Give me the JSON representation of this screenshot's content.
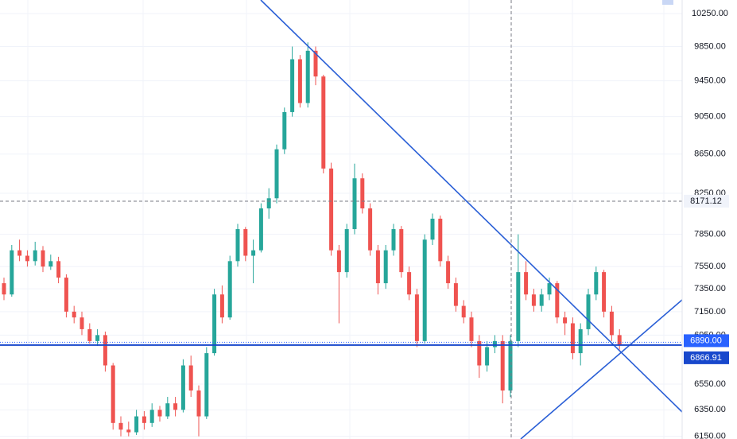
{
  "chart_data": {
    "type": "candlestick",
    "log_scale": true,
    "grid": true,
    "up_color": "#26a69a",
    "down_color": "#ef5350",
    "ylim": [
      6130,
      10420
    ],
    "yticks": [
      {
        "value": 10250,
        "label": "10250.00"
      },
      {
        "value": 9850,
        "label": "9850.00"
      },
      {
        "value": 9450,
        "label": "9450.00"
      },
      {
        "value": 9050,
        "label": "9050.00"
      },
      {
        "value": 8650,
        "label": "8650.00"
      },
      {
        "value": 8250,
        "label": "8250.00"
      },
      {
        "value": 7850,
        "label": "7850.00"
      },
      {
        "value": 7550,
        "label": "7550.00"
      },
      {
        "value": 7350,
        "label": "7350.00"
      },
      {
        "value": 7150,
        "label": "7150.00"
      },
      {
        "value": 6950,
        "label": "6950.00"
      },
      {
        "value": 6550,
        "label": "6550.00"
      },
      {
        "value": 6350,
        "label": "6350.00"
      },
      {
        "value": 6150,
        "label": "6150.00"
      }
    ],
    "price_lines": [
      {
        "value": 8171.12,
        "label": "8171.12",
        "color": "#787b86"
      },
      {
        "value": 6890,
        "label": "6890.00",
        "color": "#2962ff"
      },
      {
        "value": 6866.91,
        "label": "6866.91",
        "color": "#1848cc"
      }
    ],
    "ohlc": [
      [
        7400,
        7450,
        7250,
        7300
      ],
      [
        7300,
        7750,
        7280,
        7700
      ],
      [
        7700,
        7800,
        7600,
        7650
      ],
      [
        7650,
        7700,
        7550,
        7600
      ],
      [
        7600,
        7780,
        7560,
        7700
      ],
      [
        7700,
        7740,
        7500,
        7550
      ],
      [
        7550,
        7660,
        7520,
        7600
      ],
      [
        7600,
        7640,
        7400,
        7450
      ],
      [
        7450,
        7480,
        7100,
        7150
      ],
      [
        7150,
        7200,
        7050,
        7100
      ],
      [
        7100,
        7150,
        6950,
        7000
      ],
      [
        7000,
        7050,
        6880,
        6900
      ],
      [
        6900,
        7000,
        6860,
        6950
      ],
      [
        6950,
        6980,
        6650,
        6700
      ],
      [
        6700,
        6720,
        6200,
        6250
      ],
      [
        6250,
        6300,
        6150,
        6200
      ],
      [
        6200,
        6260,
        6150,
        6180
      ],
      [
        6180,
        6350,
        6160,
        6300
      ],
      [
        6300,
        6340,
        6200,
        6250
      ],
      [
        6250,
        6400,
        6220,
        6350
      ],
      [
        6350,
        6380,
        6260,
        6300
      ],
      [
        6300,
        6450,
        6280,
        6400
      ],
      [
        6400,
        6450,
        6300,
        6350
      ],
      [
        6350,
        6750,
        6330,
        6700
      ],
      [
        6700,
        6780,
        6450,
        6500
      ],
      [
        6500,
        6540,
        6150,
        6300
      ],
      [
        6300,
        6850,
        6280,
        6800
      ],
      [
        6800,
        7350,
        6780,
        7300
      ],
      [
        7300,
        7380,
        7050,
        7100
      ],
      [
        7100,
        7650,
        7080,
        7600
      ],
      [
        7600,
        7950,
        7550,
        7900
      ],
      [
        7900,
        7920,
        7600,
        7650
      ],
      [
        7650,
        7800,
        7400,
        7700
      ],
      [
        7700,
        8150,
        7680,
        8100
      ],
      [
        8100,
        8300,
        8000,
        8200
      ],
      [
        8200,
        8750,
        8150,
        8700
      ],
      [
        8700,
        9150,
        8650,
        9100
      ],
      [
        9100,
        9850,
        9050,
        9700
      ],
      [
        9700,
        9750,
        9150,
        9200
      ],
      [
        9200,
        9900,
        9150,
        9800
      ],
      [
        9800,
        9850,
        9400,
        9500
      ],
      [
        9500,
        9520,
        8450,
        8500
      ],
      [
        8500,
        8560,
        7650,
        7700
      ],
      [
        7700,
        7750,
        7050,
        7500
      ],
      [
        7500,
        7950,
        7450,
        7900
      ],
      [
        7900,
        8550,
        7850,
        8400
      ],
      [
        8400,
        8450,
        8050,
        8100
      ],
      [
        8100,
        8150,
        7650,
        7700
      ],
      [
        7700,
        7750,
        7300,
        7400
      ],
      [
        7400,
        7750,
        7350,
        7700
      ],
      [
        7700,
        7950,
        7650,
        7900
      ],
      [
        7900,
        7930,
        7450,
        7500
      ],
      [
        7500,
        7550,
        7250,
        7300
      ],
      [
        7300,
        7350,
        6850,
        6900
      ],
      [
        6900,
        7850,
        6880,
        7800
      ],
      [
        7800,
        8050,
        7750,
        8000
      ],
      [
        8000,
        8030,
        7550,
        7600
      ],
      [
        7600,
        7650,
        7350,
        7400
      ],
      [
        7400,
        7450,
        7150,
        7200
      ],
      [
        7200,
        7250,
        7050,
        7100
      ],
      [
        7100,
        7150,
        6850,
        6900
      ],
      [
        6900,
        6950,
        6600,
        6700
      ],
      [
        6700,
        6900,
        6650,
        6850
      ],
      [
        6850,
        6950,
        6800,
        6900
      ],
      [
        6900,
        6950,
        6400,
        6500
      ],
      [
        6500,
        6950,
        6450,
        6900
      ],
      [
        6900,
        7850,
        6850,
        7500
      ],
      [
        7500,
        7600,
        7250,
        7300
      ],
      [
        7300,
        7350,
        7150,
        7200
      ],
      [
        7200,
        7350,
        7150,
        7300
      ],
      [
        7300,
        7450,
        7250,
        7400
      ],
      [
        7400,
        7420,
        7050,
        7100
      ],
      [
        7100,
        7150,
        6950,
        7050
      ],
      [
        7050,
        7100,
        6750,
        6800
      ],
      [
        6800,
        7050,
        6700,
        7000
      ],
      [
        7000,
        7350,
        6950,
        7300
      ],
      [
        7300,
        7550,
        7250,
        7500
      ],
      [
        7500,
        7520,
        7100,
        7150
      ],
      [
        7150,
        7200,
        6900,
        6950
      ],
      [
        6950,
        7000,
        6830,
        6870
      ]
    ]
  }
}
